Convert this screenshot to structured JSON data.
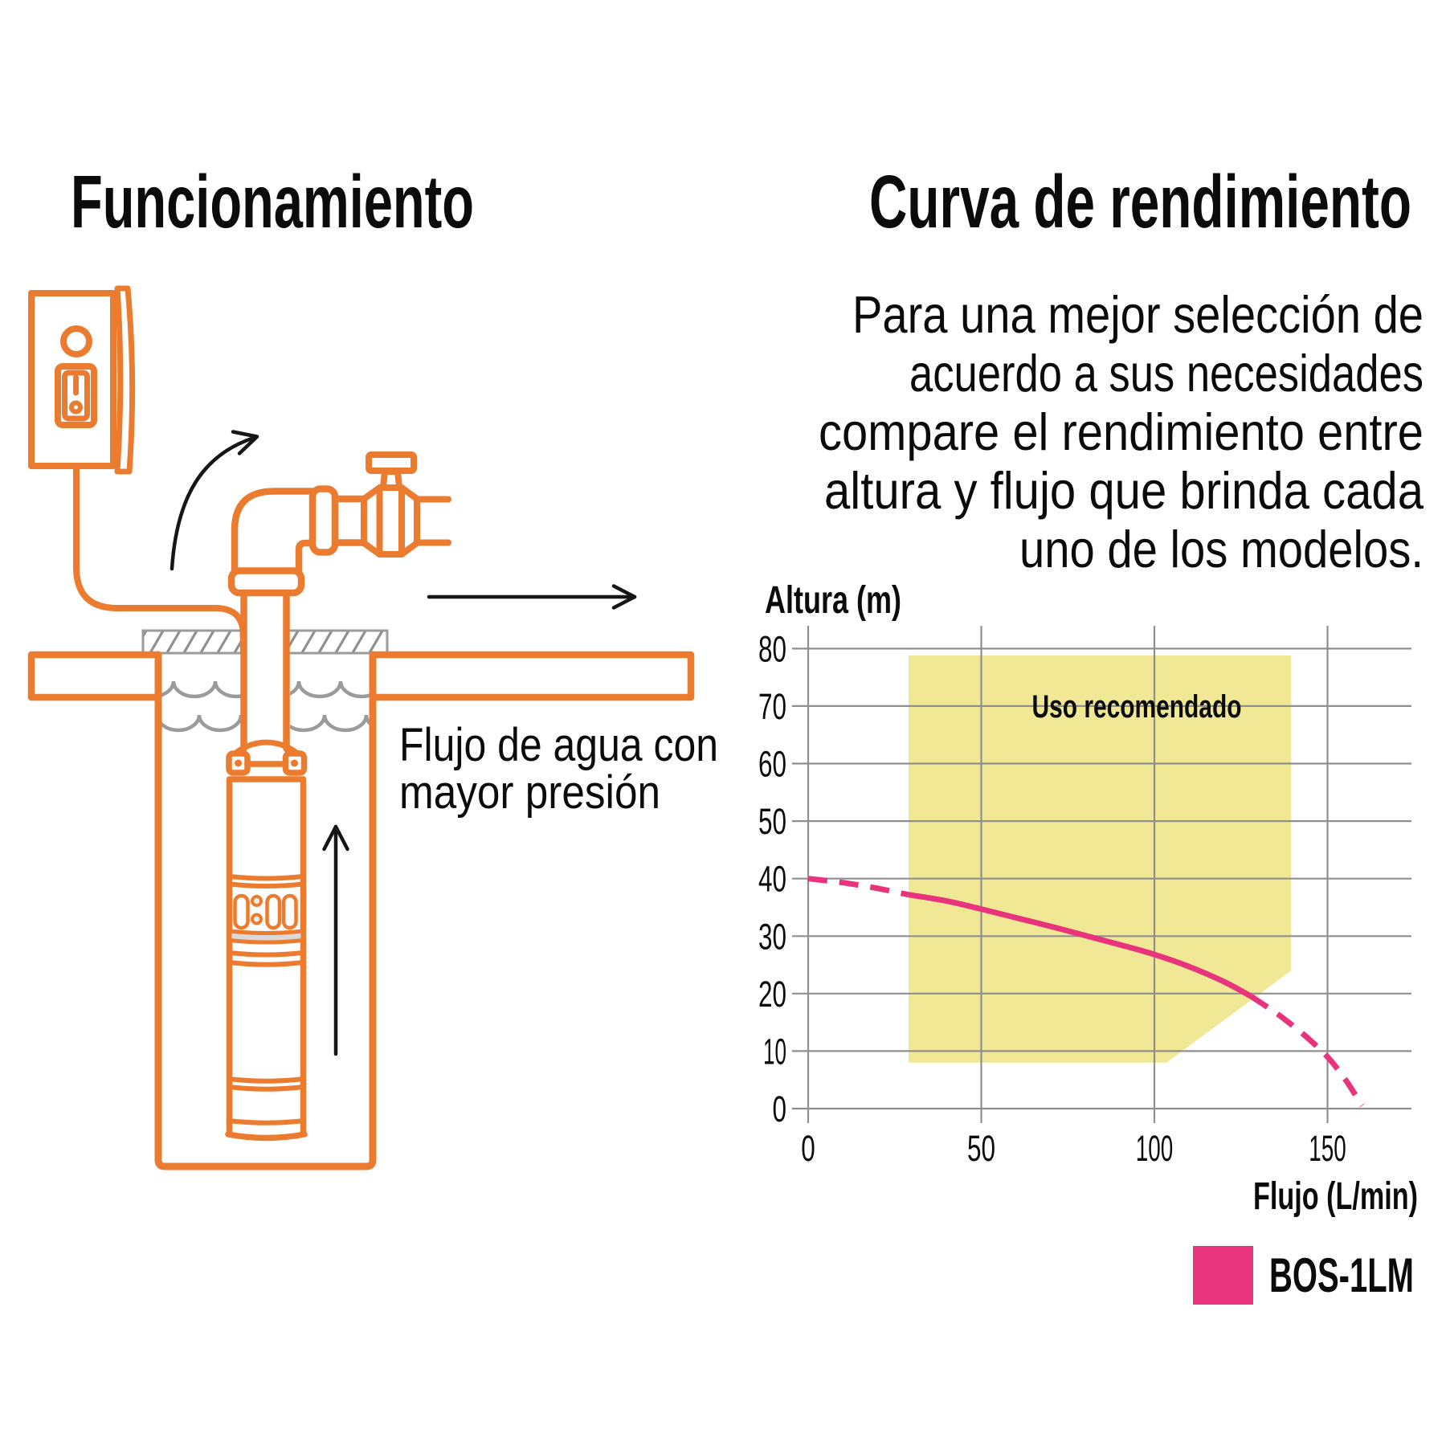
{
  "left_panel": {
    "title": "Funcionamiento",
    "caption_line1": "Flujo de agua con",
    "caption_line2": "mayor presión"
  },
  "right_panel": {
    "title": "Curva de rendimiento",
    "paragraph_lines": [
      "Para una mejor selección de",
      "acuerdo a sus necesidades",
      "compare el rendimiento entre",
      "altura y flujo que brinda cada",
      "uno de los modelos."
    ]
  },
  "chart_data": {
    "type": "line",
    "title": "Curva de rendimiento",
    "xlabel": "Flujo (L/min)",
    "ylabel": "Altura (m)",
    "x_ticks": [
      0,
      50,
      100,
      150
    ],
    "y_ticks": [
      0,
      10,
      20,
      30,
      40,
      50,
      60,
      70,
      80
    ],
    "xlim": [
      0,
      174
    ],
    "ylim": [
      0,
      84
    ],
    "grid": true,
    "legend_position": "bottom-right",
    "region": {
      "label": "Uso recomendado",
      "color": "#F0E894",
      "polygon": [
        [
          29,
          78.8
        ],
        [
          139.5,
          78.8
        ],
        [
          139.5,
          24
        ],
        [
          103.5,
          8
        ],
        [
          29,
          8
        ]
      ]
    },
    "series": [
      {
        "name": "BOS-1LM",
        "color": "#E8347D",
        "segments": [
          {
            "style": "dashed",
            "points": [
              [
                0,
                40
              ],
              [
                10,
                39.3
              ],
              [
                20,
                38.3
              ],
              [
                29,
                37.2
              ]
            ]
          },
          {
            "style": "solid",
            "points": [
              [
                29,
                37.2
              ],
              [
                40,
                36.1
              ],
              [
                50,
                34.7
              ],
              [
                60,
                33.2
              ],
              [
                70,
                31.7
              ],
              [
                80,
                30.1
              ],
              [
                90,
                28.5
              ],
              [
                100,
                26.8
              ],
              [
                110,
                24.7
              ],
              [
                120,
                22.1
              ],
              [
                128,
                19.5
              ]
            ]
          },
          {
            "style": "dashed",
            "points": [
              [
                128,
                19.5
              ],
              [
                135,
                16.7
              ],
              [
                140,
                14.4
              ],
              [
                145,
                11.9
              ],
              [
                150,
                9
              ],
              [
                155,
                5.2
              ],
              [
                160,
                0.5
              ]
            ]
          }
        ]
      }
    ],
    "legend": {
      "items": [
        {
          "label": "BOS-1LM",
          "color": "#E8347D"
        }
      ]
    }
  },
  "colors": {
    "line_art_orange": "#EB7C2F",
    "accent_pink": "#E8347D",
    "region_yellow": "#F0E894",
    "grid_gray": "#8F8F8F",
    "water_gray": "#9B9B9B",
    "hatch_gray": "#8F8F8F",
    "ink": "#0B0B0B",
    "arrow_black": "#161616"
  }
}
